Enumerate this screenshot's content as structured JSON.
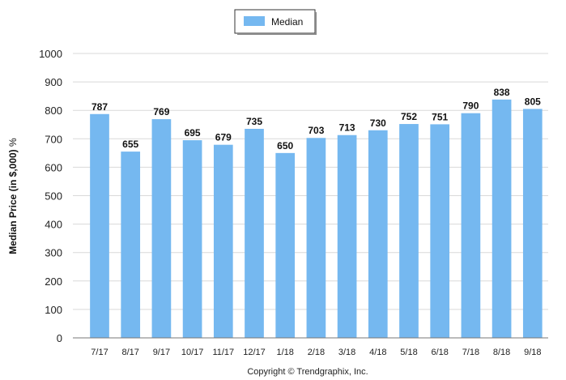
{
  "chart_data": {
    "type": "bar",
    "categories": [
      "7/17",
      "8/17",
      "9/17",
      "10/17",
      "11/17",
      "12/17",
      "1/18",
      "2/18",
      "3/18",
      "4/18",
      "5/18",
      "6/18",
      "7/18",
      "8/18",
      "9/18"
    ],
    "series": [
      {
        "name": "Median",
        "values": [
          787,
          655,
          769,
          695,
          679,
          735,
          650,
          703,
          713,
          730,
          752,
          751,
          790,
          838,
          805
        ]
      }
    ],
    "title": "",
    "xlabel": "",
    "ylabel": "Median Price (in $,000)",
    "ylabel_unit": "%",
    "ylim": [
      0,
      1000
    ],
    "yticks": [
      0,
      100,
      200,
      300,
      400,
      500,
      600,
      700,
      800,
      900,
      1000
    ],
    "grid": true,
    "legend_position": "top-center",
    "bar_color": "#75B8F0",
    "data_labels": true
  },
  "footer": {
    "copyright": "Copyright © Trendgraphix, Inc."
  }
}
